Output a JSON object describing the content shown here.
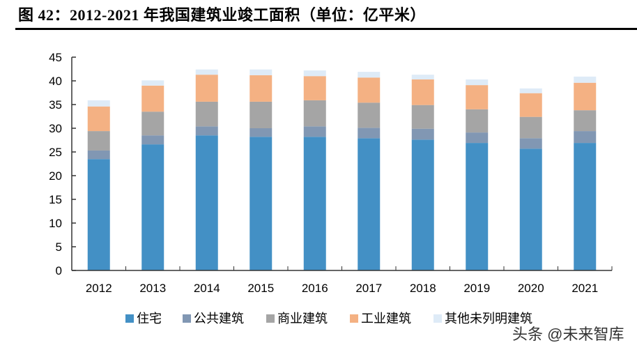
{
  "title": "图 42：2012-2021 年我国建筑业竣工面积（单位：亿平米）",
  "watermark": "头条 @未来智库",
  "chart_data": {
    "type": "bar",
    "stacked": true,
    "title": "2012-2021 年我国建筑业竣工面积（单位：亿平米）",
    "xlabel": "",
    "ylabel": "",
    "ylim": [
      0,
      45
    ],
    "yticks": [
      0,
      5,
      10,
      15,
      20,
      25,
      30,
      35,
      40,
      45
    ],
    "grid": false,
    "legend_position": "bottom",
    "categories": [
      "2012",
      "2013",
      "2014",
      "2015",
      "2016",
      "2017",
      "2018",
      "2019",
      "2020",
      "2021"
    ],
    "series": [
      {
        "name": "住宅",
        "color": "#4390c5",
        "values": [
          23.5,
          26.6,
          28.5,
          28.2,
          28.2,
          27.9,
          27.6,
          26.9,
          25.7,
          26.9
        ]
      },
      {
        "name": "公共建筑",
        "color": "#8197b3",
        "values": [
          1.8,
          1.9,
          1.9,
          1.8,
          2.2,
          2.2,
          2.3,
          2.2,
          2.2,
          2.5
        ]
      },
      {
        "name": "商业建筑",
        "color": "#a5a5a5",
        "values": [
          4.1,
          5.0,
          5.2,
          5.6,
          5.5,
          5.3,
          5.0,
          4.9,
          4.5,
          4.4
        ]
      },
      {
        "name": "工业建筑",
        "color": "#f4b183",
        "values": [
          5.2,
          5.5,
          5.7,
          5.6,
          5.1,
          5.3,
          5.4,
          5.1,
          5.0,
          5.8
        ]
      },
      {
        "name": "其他未列明建筑",
        "color": "#deebf7",
        "values": [
          1.3,
          1.1,
          1.1,
          1.2,
          1.2,
          1.2,
          1.0,
          1.2,
          1.0,
          1.3
        ]
      }
    ]
  }
}
